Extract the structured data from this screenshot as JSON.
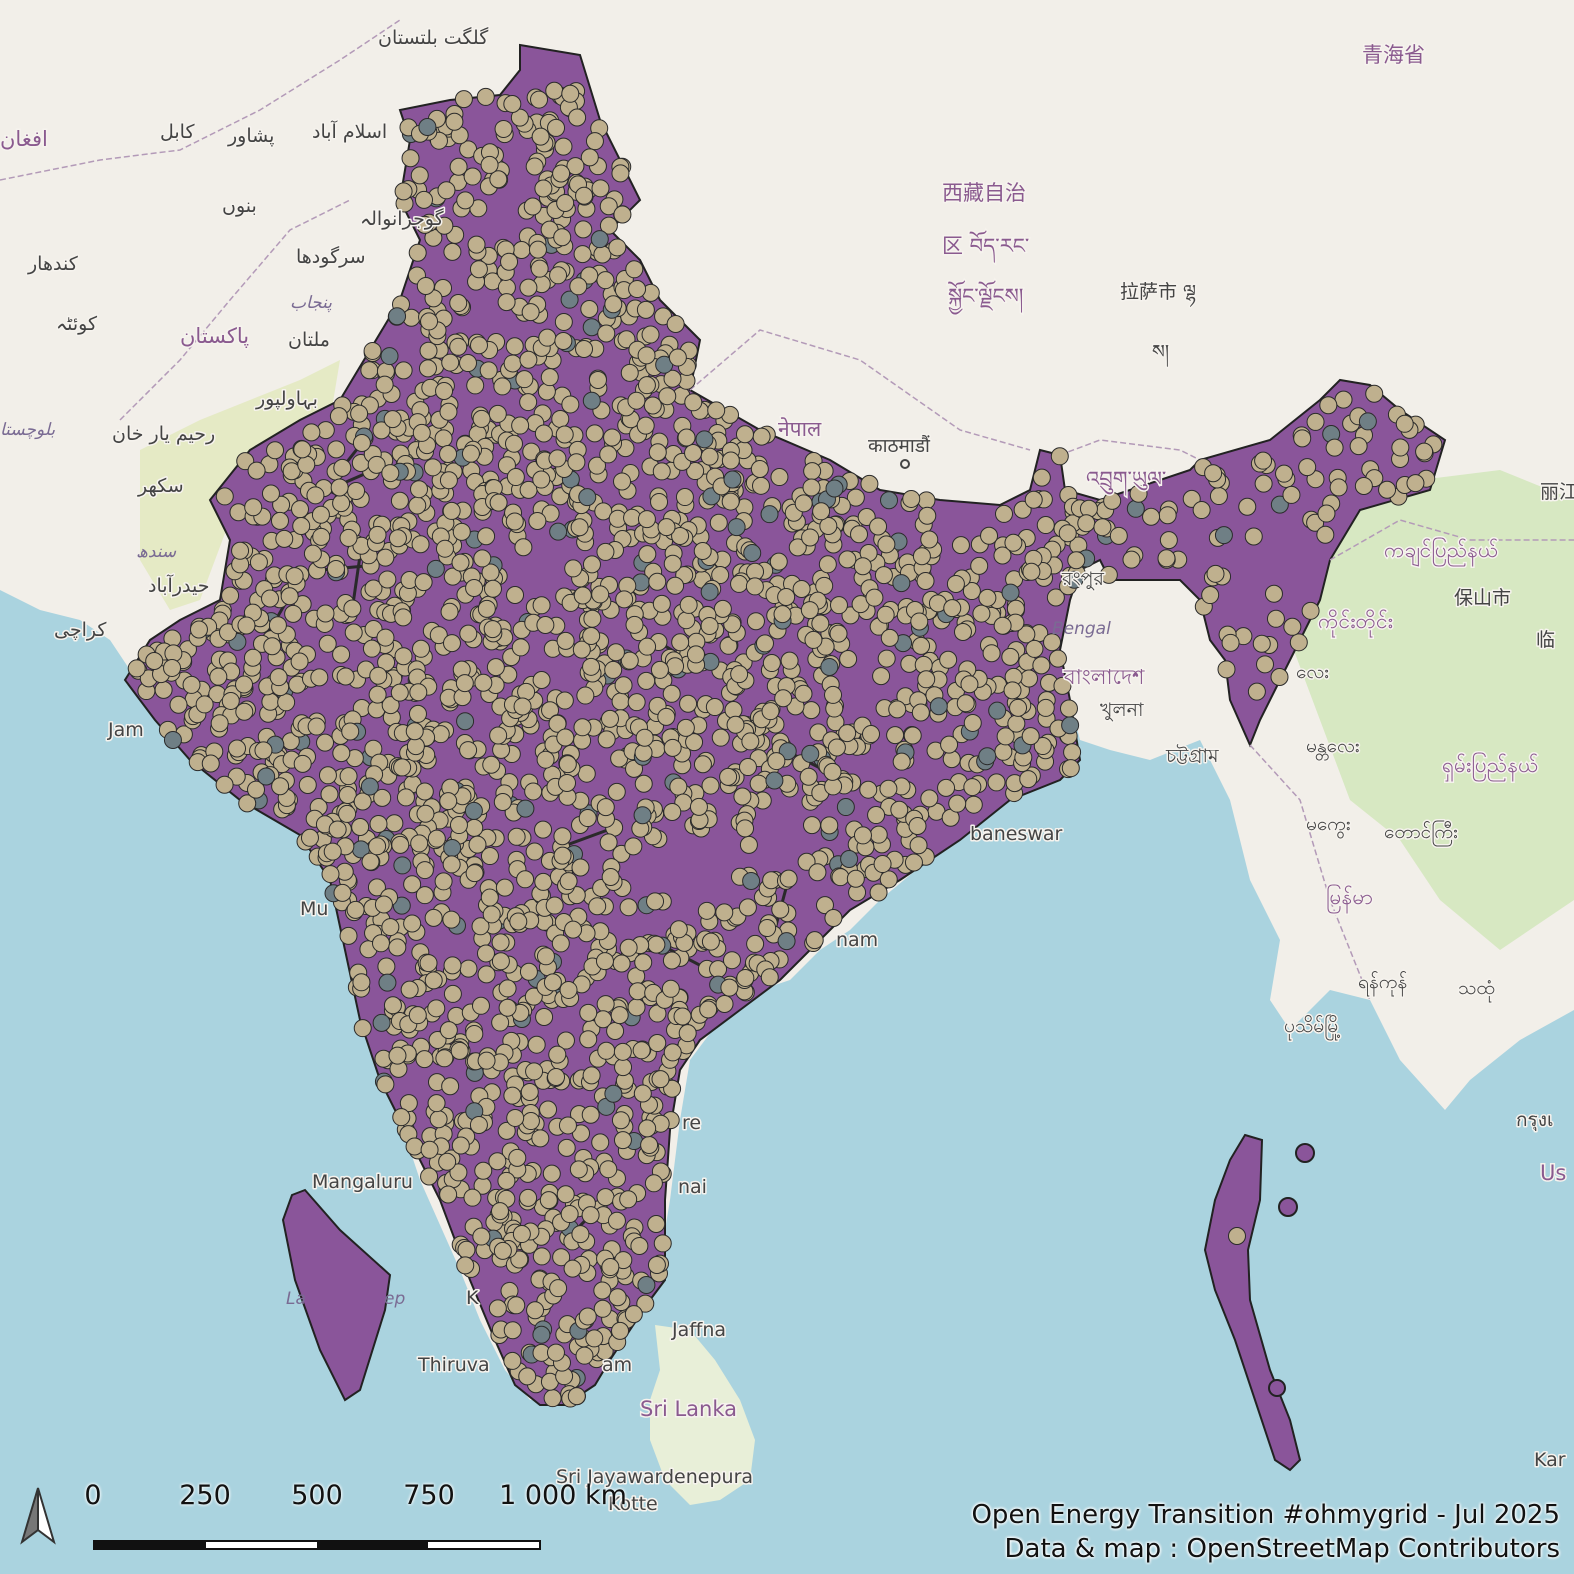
{
  "colors": {
    "sea": "#aad3df",
    "land": "#f2efe9",
    "india_fill": "#8a559a",
    "substation_fill": "#bfb08e",
    "substation_stroke": "#2b2b2b",
    "line_color": "#2a2a2a",
    "secondary_point": "#6f7f85",
    "green_land": "#cfe6b8"
  },
  "labels": {
    "pakistan": "پاکستان",
    "nepal": "नेपाल",
    "kathmandu": "काठमाडौं",
    "bangladesh": "বাংলাদেশ",
    "khulna": "খুলনা",
    "chattogram": "চট্টগ্রাম",
    "sri_lanka": "Sri Lanka",
    "jaffna": "Jaffna",
    "sri_jaya": "Sri Jayawardenepura",
    "kotte": "Kotte",
    "mangaluru": "Mangaluru",
    "thiruvananthapuram_left": "Thiruva",
    "thiruvananthapuram_right": "am",
    "chennai": "nai",
    "puducherry": "re",
    "bhubaneswar": "baneswar",
    "visakhapatnam": "nam",
    "mumbai": "Mu",
    "jamnagar": "Jam",
    "karachi": "کراچی",
    "hyderabad_pk": "حیدرآباد",
    "sindh": "سندھ",
    "sukkur": "سکھر",
    "rahim_yar_khan": "رحیم یار خان",
    "bahawalpur": "بہاولپور",
    "multan": "ملتان",
    "punjab": "پنجاب",
    "sargodha": "سرگودھا",
    "gujranwala": "گوجرانوالہ",
    "islamabad": "اسلام آباد",
    "peshawar": "پشاور",
    "kabul": "کابل",
    "bannu": "بنوں",
    "kandahar": "کندهار",
    "quetta": "کوئٹہ",
    "afghanistan": "افغان",
    "balochistan": "بلوچستا",
    "gilgit": "گلگت بلتستان",
    "xizang1": "西藏自治",
    "xizang2": "区 བོད་རང་",
    "xizang3": "སྐྱོང་ལྗོངས།",
    "lhasa": "拉萨市 ལྷ",
    "lhasa2": "ས།",
    "qinghai": "青海省",
    "bhutan": "འབྲུག་ཡུལ་",
    "kachin": "ကချင်ပြည်နယ်",
    "baoshan": "保山市",
    "lincang": "临",
    "myanmar": "မြန်မာ",
    "mandalay": "မန္တလေး",
    "shan": "ရှမ်းပြည်နယ်",
    "magway": "မကွေး",
    "taunggyi": "တောင်ကြီး",
    "yangon": "ရန်ကုန်",
    "pathein": "ပုသိမ်မြို့",
    "thaton": "သထုံ",
    "sagaing": "ကိုင်းတိုင်း",
    "lishi": "လေး",
    "rangpur": "রংপুর",
    "krung": "กรุงเ",
    "us": "Us",
    "lijiang": "丽江",
    "kar": "Kar",
    "bengal": "Bengal",
    "lakshadweep_l": "La",
    "lakshadweep_r": "ep",
    "kochi": "K"
  },
  "scale": {
    "ticks": [
      "0",
      "250",
      "500",
      "750",
      "1 000 km"
    ]
  },
  "credits": {
    "line1": "Open Energy Transition #ohmygrid - Jul 2025",
    "line2": "Data & map : OpenStreetMap Contributors"
  },
  "legend_icons": {
    "north_arrow": "north-arrow-icon"
  }
}
